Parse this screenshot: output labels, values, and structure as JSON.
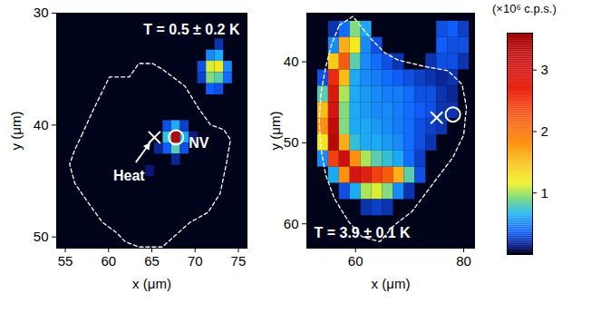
{
  "chart_data": [
    {
      "type": "heatmap",
      "annotation": "T = 0.5 ± 0.2 K",
      "xlabel": "x (μm)",
      "ylabel": "y (μm)",
      "xlim": [
        54,
        76
      ],
      "ylim": [
        51,
        30
      ],
      "xticks": [
        55,
        60,
        65,
        70,
        75
      ],
      "yticks": [
        30,
        40,
        50
      ],
      "cell_size": 1,
      "cells": [
        [
          67.8,
          41.1,
          3.3
        ],
        [
          66.8,
          41.1,
          0.7
        ],
        [
          68.8,
          41.1,
          0.6
        ],
        [
          67.8,
          40.1,
          0.6
        ],
        [
          67.8,
          42.1,
          0.8
        ],
        [
          66.8,
          40.1,
          0.3
        ],
        [
          68.8,
          40.1,
          0.25
        ],
        [
          66.8,
          42.1,
          0.35
        ],
        [
          68.8,
          42.1,
          0.3
        ],
        [
          65.8,
          42.1,
          0.15
        ],
        [
          69.8,
          41.1,
          0.12
        ],
        [
          67.8,
          43.1,
          0.15
        ],
        [
          64.8,
          44.1,
          0.1
        ],
        [
          71.8,
          33.8,
          0.5
        ],
        [
          72.8,
          33.8,
          0.6
        ],
        [
          71.8,
          34.8,
          1.1
        ],
        [
          72.8,
          34.8,
          1.2
        ],
        [
          73.8,
          34.8,
          0.5
        ],
        [
          70.8,
          34.8,
          0.3
        ],
        [
          71.8,
          35.8,
          0.9
        ],
        [
          72.8,
          35.8,
          0.8
        ],
        [
          73.8,
          35.8,
          0.4
        ],
        [
          70.8,
          35.8,
          0.25
        ],
        [
          72.8,
          36.8,
          0.3
        ],
        [
          71.8,
          36.8,
          0.35
        ],
        [
          72.8,
          32.8,
          0.2
        ]
      ],
      "outline": [
        [
          56.9,
          40.9
        ],
        [
          58.2,
          38.7
        ],
        [
          60.1,
          35.7
        ],
        [
          62.4,
          35.7
        ],
        [
          63.5,
          34.5
        ],
        [
          65.1,
          34.5
        ],
        [
          66.2,
          35.0
        ],
        [
          68.8,
          36.5
        ],
        [
          70.4,
          38.5
        ],
        [
          71.8,
          40.0
        ],
        [
          73.3,
          40.4
        ],
        [
          74.1,
          41.3
        ],
        [
          73.6,
          43.5
        ],
        [
          72.9,
          46.1
        ],
        [
          71.5,
          47.8
        ],
        [
          69.4,
          48.7
        ],
        [
          67.8,
          49.8
        ],
        [
          66.2,
          50.9
        ],
        [
          63.5,
          50.9
        ],
        [
          61.9,
          50.4
        ],
        [
          60.9,
          49.6
        ],
        [
          59.3,
          48.7
        ],
        [
          57.7,
          47.0
        ],
        [
          56.1,
          45.2
        ],
        [
          55.5,
          43.5
        ],
        [
          56.1,
          42.2
        ]
      ],
      "markers": [
        {
          "label": "Heat",
          "marker": "cross",
          "x": 65.3,
          "y": 41.1
        },
        {
          "label": "NV",
          "marker": "circle",
          "x": 67.8,
          "y": 41.1
        }
      ]
    },
    {
      "type": "heatmap",
      "annotation": "T = 3.9 ± 0.1 K",
      "xlabel": "x (μm)",
      "ylabel": "y (μm)",
      "xlim": [
        51,
        82
      ],
      "ylim": [
        63,
        34
      ],
      "xticks": [
        60,
        80
      ],
      "yticks": [
        40,
        50,
        60
      ],
      "cell_size": 2,
      "cells": [
        [
          56,
          36,
          0.2
        ],
        [
          58,
          36,
          0.4
        ],
        [
          60,
          36,
          0.9
        ],
        [
          62,
          36,
          0.6
        ],
        [
          76,
          36,
          0.3
        ],
        [
          78,
          36,
          0.35
        ],
        [
          80,
          36,
          0.25
        ],
        [
          56,
          38,
          0.5
        ],
        [
          58,
          38,
          1.6
        ],
        [
          60,
          38,
          1.2
        ],
        [
          62,
          38,
          0.5
        ],
        [
          64,
          38,
          0.3
        ],
        [
          76,
          38,
          0.35
        ],
        [
          78,
          38,
          0.3
        ],
        [
          80,
          38,
          0.3
        ],
        [
          56,
          40,
          1.4
        ],
        [
          58,
          40,
          2.2
        ],
        [
          60,
          40,
          0.8
        ],
        [
          62,
          40,
          0.5
        ],
        [
          64,
          40,
          0.4
        ],
        [
          66,
          40,
          0.3
        ],
        [
          68,
          40,
          0.2
        ],
        [
          74,
          40,
          0.2
        ],
        [
          76,
          40,
          0.3
        ],
        [
          78,
          40,
          0.3
        ],
        [
          80,
          40,
          0.2
        ],
        [
          54,
          42,
          0.3
        ],
        [
          56,
          42,
          2.6
        ],
        [
          58,
          42,
          1.5
        ],
        [
          60,
          42,
          0.6
        ],
        [
          62,
          42,
          0.5
        ],
        [
          64,
          42,
          0.45
        ],
        [
          66,
          42,
          0.4
        ],
        [
          68,
          42,
          0.35
        ],
        [
          70,
          42,
          0.3
        ],
        [
          72,
          42,
          0.25
        ],
        [
          74,
          42,
          0.2
        ],
        [
          76,
          42,
          0.15
        ],
        [
          78,
          42,
          0.2
        ],
        [
          54,
          44,
          0.8
        ],
        [
          56,
          44,
          2.9
        ],
        [
          58,
          44,
          1.0
        ],
        [
          60,
          44,
          0.6
        ],
        [
          62,
          44,
          0.55
        ],
        [
          64,
          44,
          0.5
        ],
        [
          66,
          44,
          0.45
        ],
        [
          68,
          44,
          0.45
        ],
        [
          70,
          44,
          0.4
        ],
        [
          72,
          44,
          0.3
        ],
        [
          74,
          44,
          0.3
        ],
        [
          76,
          44,
          0.2
        ],
        [
          78,
          44,
          0.15
        ],
        [
          54,
          46,
          1.5
        ],
        [
          56,
          46,
          3.0
        ],
        [
          58,
          46,
          0.9
        ],
        [
          60,
          46,
          0.6
        ],
        [
          62,
          46,
          0.55
        ],
        [
          64,
          46,
          0.5
        ],
        [
          66,
          46,
          0.5
        ],
        [
          68,
          46,
          0.45
        ],
        [
          70,
          46,
          0.4
        ],
        [
          72,
          46,
          0.35
        ],
        [
          74,
          46,
          0.3
        ],
        [
          76,
          46,
          0.2
        ],
        [
          78,
          46,
          0.2
        ],
        [
          54,
          48,
          1.8
        ],
        [
          56,
          48,
          3.2
        ],
        [
          58,
          48,
          0.9
        ],
        [
          60,
          48,
          0.6
        ],
        [
          62,
          48,
          0.6
        ],
        [
          64,
          48,
          0.55
        ],
        [
          66,
          48,
          0.5
        ],
        [
          68,
          48,
          0.45
        ],
        [
          70,
          48,
          0.4
        ],
        [
          72,
          48,
          0.3
        ],
        [
          74,
          48,
          0.25
        ],
        [
          76,
          48,
          0.2
        ],
        [
          54,
          50,
          1.2
        ],
        [
          56,
          50,
          3.3
        ],
        [
          58,
          50,
          1.6
        ],
        [
          60,
          50,
          0.7
        ],
        [
          62,
          50,
          0.6
        ],
        [
          64,
          50,
          0.6
        ],
        [
          66,
          50,
          0.55
        ],
        [
          68,
          50,
          0.5
        ],
        [
          70,
          50,
          0.4
        ],
        [
          72,
          50,
          0.3
        ],
        [
          74,
          50,
          0.2
        ],
        [
          54,
          52,
          0.5
        ],
        [
          56,
          52,
          2.4
        ],
        [
          58,
          52,
          3.1
        ],
        [
          60,
          52,
          1.8
        ],
        [
          62,
          52,
          1.0
        ],
        [
          64,
          52,
          0.8
        ],
        [
          66,
          52,
          0.7
        ],
        [
          68,
          52,
          0.6
        ],
        [
          70,
          52,
          0.4
        ],
        [
          72,
          52,
          0.25
        ],
        [
          56,
          54,
          0.6
        ],
        [
          58,
          54,
          1.8
        ],
        [
          60,
          54,
          3.0
        ],
        [
          62,
          54,
          2.8
        ],
        [
          64,
          54,
          2.4
        ],
        [
          66,
          54,
          2.2
        ],
        [
          68,
          54,
          1.6
        ],
        [
          70,
          54,
          0.8
        ],
        [
          72,
          54,
          0.3
        ],
        [
          58,
          56,
          0.3
        ],
        [
          60,
          56,
          0.6
        ],
        [
          62,
          56,
          1.0
        ],
        [
          64,
          56,
          1.1
        ],
        [
          66,
          56,
          0.9
        ],
        [
          68,
          56,
          0.5
        ],
        [
          70,
          56,
          0.2
        ],
        [
          62,
          58,
          0.2
        ],
        [
          64,
          58,
          0.25
        ],
        [
          66,
          58,
          0.2
        ]
      ],
      "outline": [
        [
          57.0,
          35.5
        ],
        [
          59.5,
          34.4
        ],
        [
          62.9,
          37.2
        ],
        [
          65.4,
          38.9
        ],
        [
          67.9,
          39.8
        ],
        [
          72.9,
          40.6
        ],
        [
          77.1,
          41.1
        ],
        [
          79.7,
          42.8
        ],
        [
          80.5,
          45.6
        ],
        [
          80.0,
          49.0
        ],
        [
          78.0,
          51.8
        ],
        [
          75.5,
          54.0
        ],
        [
          72.9,
          56.3
        ],
        [
          70.4,
          58.5
        ],
        [
          67.1,
          60.2
        ],
        [
          64.5,
          62.2
        ],
        [
          61.2,
          61.6
        ],
        [
          58.7,
          59.7
        ],
        [
          56.1,
          56.9
        ],
        [
          54.5,
          54.0
        ],
        [
          53.6,
          50.7
        ],
        [
          53.3,
          47.3
        ],
        [
          53.6,
          43.9
        ],
        [
          54.5,
          40.6
        ],
        [
          55.6,
          37.8
        ]
      ],
      "markers": [
        {
          "marker": "cross",
          "x": 75.0,
          "y": 46.9
        },
        {
          "marker": "circle",
          "x": 78.0,
          "y": 46.5
        }
      ]
    }
  ],
  "colorbar": {
    "label": "(×10⁶ c.p.s.)",
    "range": [
      0,
      3.6
    ],
    "ticks": [
      1,
      2,
      3
    ]
  }
}
